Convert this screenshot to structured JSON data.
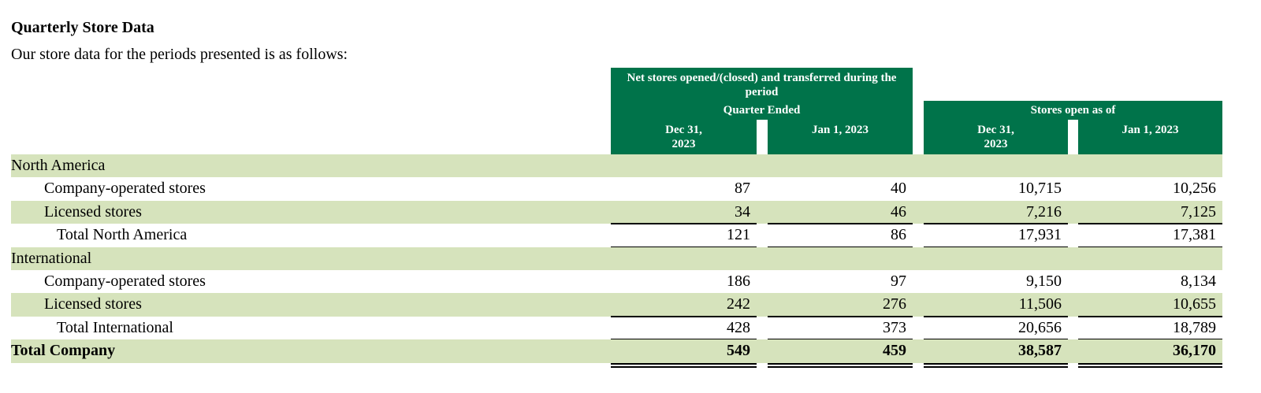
{
  "header": {
    "title": "Quarterly Store Data",
    "subtitle": "Our store data for the periods presented is as follows:"
  },
  "table": {
    "group_headers": [
      "Net stores opened/(closed) and transferred during the period",
      "Stores open as of"
    ],
    "sub_header": "Quarter Ended",
    "columns": [
      "Dec 31, 2023",
      "Jan 1, 2023",
      "Dec 31, 2023",
      "Jan 1, 2023"
    ],
    "rows": [
      [
        "North America"
      ],
      [
        "Company-operated stores",
        "87",
        "40",
        "10,715",
        "10,256"
      ],
      [
        "Licensed stores",
        "34",
        "46",
        "7,216",
        "7,125"
      ],
      [
        "Total North America",
        "121",
        "86",
        "17,931",
        "17,381"
      ],
      [
        "International"
      ],
      [
        "Company-operated stores",
        "186",
        "97",
        "9,150",
        "8,134"
      ],
      [
        "Licensed stores",
        "242",
        "276",
        "11,506",
        "10,655"
      ],
      [
        "Total International",
        "428",
        "373",
        "20,656",
        "18,789"
      ],
      [
        "Total Company",
        "549",
        "459",
        "38,587",
        "36,170"
      ]
    ]
  }
}
